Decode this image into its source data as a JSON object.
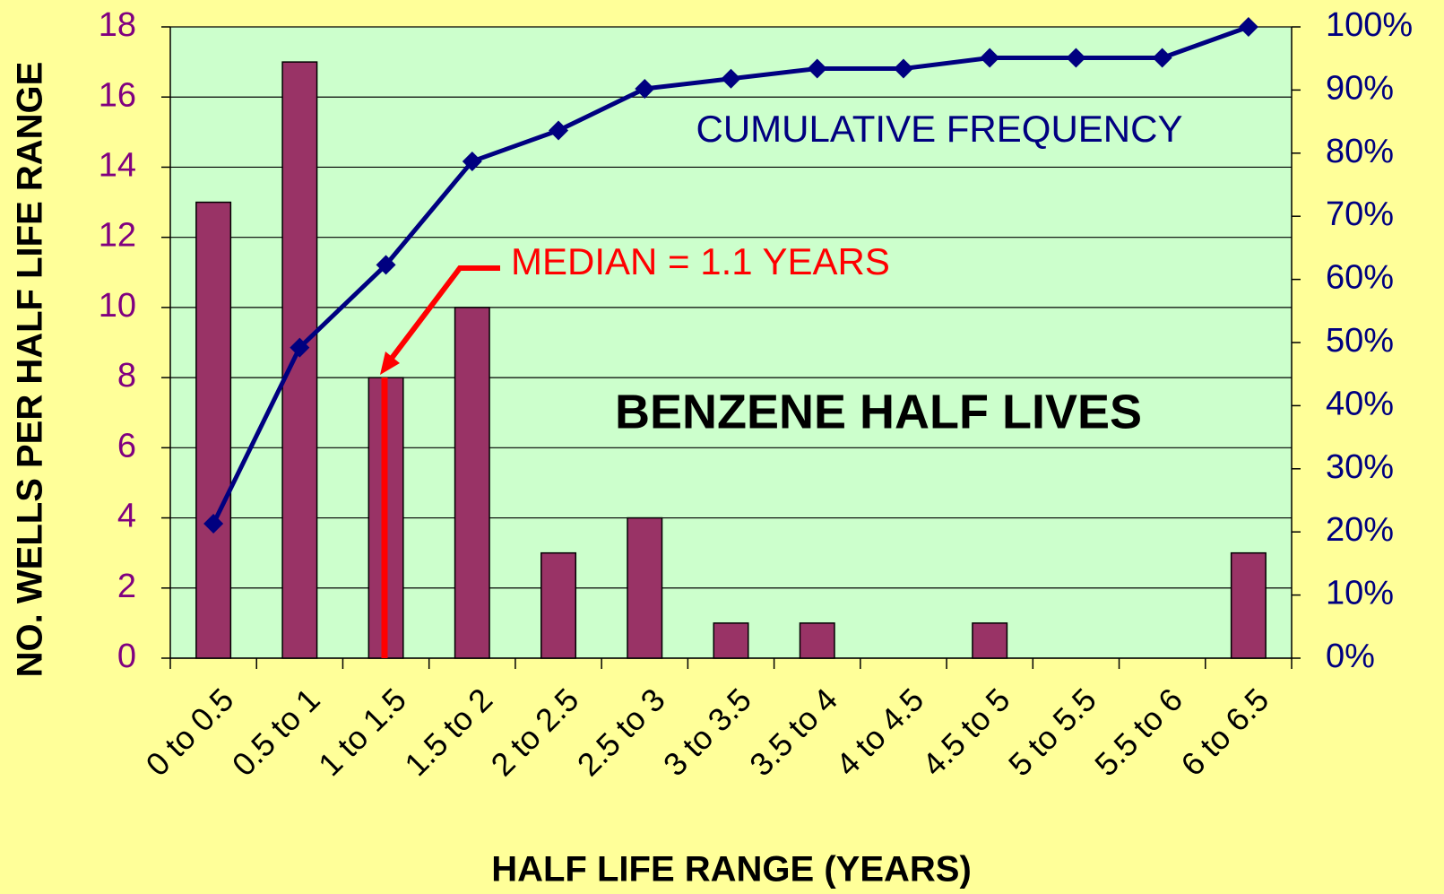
{
  "chart_data": {
    "type": "bar_line",
    "title": "BENZENE HALF LIVES",
    "x_label": "HALF LIFE RANGE (YEARS)",
    "y_label": "NO. WELLS PER HALF LIFE RANGE",
    "annotations": [
      "CUMULATIVE FREQUENCY",
      "MEDIAN = 1.1 YEARS"
    ],
    "categories": [
      "0 to 0.5",
      "0.5 to 1",
      "1 to 1.5",
      "1.5 to 2",
      "2 to 2.5",
      "2.5 to 3",
      "3 to 3.5",
      "3.5 to 4",
      "4 to 4.5",
      "4.5 to 5",
      "5 to 5.5",
      "5.5 to 6",
      "6 to 6.5"
    ],
    "series": [
      {
        "type": "bar",
        "color": "#993366",
        "values": [
          13,
          17,
          8,
          10,
          3,
          4,
          1,
          1,
          0,
          1,
          0,
          0,
          3
        ]
      },
      {
        "type": "line",
        "axis": "y2",
        "color": "#000080",
        "values": [
          21.3,
          49.2,
          62.3,
          78.7,
          83.6,
          90.2,
          91.8,
          93.4,
          93.4,
          95.1,
          95.1,
          95.1,
          100
        ]
      }
    ],
    "ylim": [
      0,
      18
    ],
    "yticks": [
      0,
      2,
      4,
      6,
      8,
      10,
      12,
      14,
      16,
      18
    ],
    "y2lim": [
      0,
      100
    ],
    "y2ticks": [
      {
        "value": 0,
        "label": "0%"
      },
      {
        "value": 10,
        "label": "10%"
      },
      {
        "value": 20,
        "label": "20%"
      },
      {
        "value": 30,
        "label": "30%"
      },
      {
        "value": 40,
        "label": "40%"
      },
      {
        "value": 50,
        "label": "50%"
      },
      {
        "value": 60,
        "label": "60%"
      },
      {
        "value": 70,
        "label": "70%"
      },
      {
        "value": 80,
        "label": "80%"
      },
      {
        "value": 90,
        "label": "90%"
      },
      {
        "value": 100,
        "label": "100%"
      }
    ],
    "grid": true,
    "plot_background": "#ccffcc"
  }
}
